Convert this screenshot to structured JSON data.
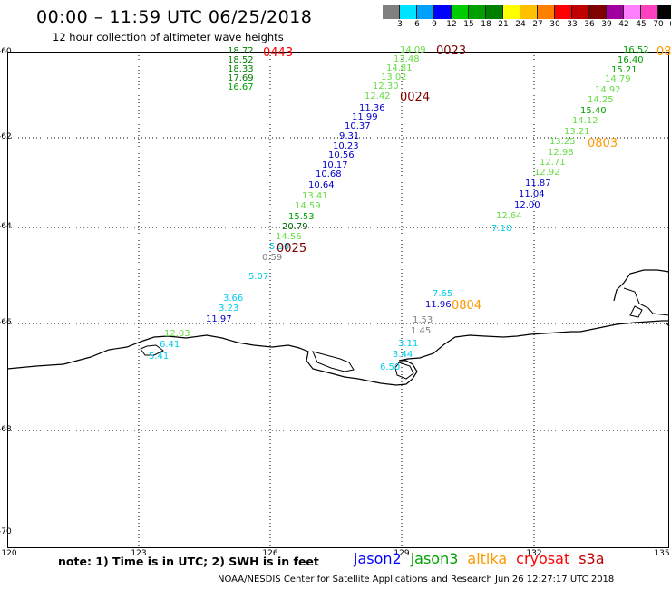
{
  "header": {
    "title": "00:00 – 11:59 UTC 06/25/2018",
    "subtitle": "12 hour collection of altimeter wave heights"
  },
  "scale": {
    "colors": [
      "#808080",
      "#00e5ff",
      "#00a0ff",
      "#0000ff",
      "#00cc00",
      "#00a000",
      "#008000",
      "#ffff00",
      "#ffc000",
      "#ff8000",
      "#ff0000",
      "#c00000",
      "#800000",
      "#a000a0",
      "#ff80ff",
      "#ff40c0",
      "#000000"
    ],
    "labels": [
      "3",
      "6",
      "9",
      "12",
      "15",
      "18",
      "21",
      "24",
      "27",
      "30",
      "33",
      "36",
      "39",
      "42",
      "45",
      "70",
      "(ft)"
    ]
  },
  "axes": {
    "lat_labels": [
      "-60",
      "-62",
      "-64",
      "-66",
      "-68",
      "-70"
    ],
    "lon_labels": [
      "120",
      "123",
      "126",
      "129",
      "132",
      "135"
    ]
  },
  "tracks": {
    "t0443": {
      "time": "0443",
      "time_color": "#ff0000",
      "values": [
        {
          "v": "18.72",
          "c": "#008000"
        },
        {
          "v": "18.52",
          "c": "#008000"
        },
        {
          "v": "18.33",
          "c": "#008000"
        },
        {
          "v": "17.69",
          "c": "#008000"
        },
        {
          "v": "16.67",
          "c": "#00a000"
        }
      ]
    },
    "t0023": {
      "time": "0023",
      "time_color": "#800000",
      "values": [
        {
          "v": "14.09",
          "c": "#66dd44"
        },
        {
          "v": "13.48",
          "c": "#66dd44"
        },
        {
          "v": "14.81",
          "c": "#66dd44"
        },
        {
          "v": "13.02",
          "c": "#66dd44"
        },
        {
          "v": "12.30",
          "c": "#66dd44"
        },
        {
          "v": "12.42",
          "c": "#66dd44"
        }
      ]
    },
    "t0024": {
      "time": "0024",
      "time_color": "#800000",
      "values": [
        {
          "v": "11.36",
          "c": "#0000cc"
        },
        {
          "v": "11.99",
          "c": "#0000cc"
        },
        {
          "v": "10.37",
          "c": "#0000cc"
        },
        {
          "v": "9.31",
          "c": "#0000cc"
        },
        {
          "v": "10.23",
          "c": "#0000cc"
        },
        {
          "v": "10.56",
          "c": "#0000cc"
        },
        {
          "v": "10.17",
          "c": "#0000cc"
        },
        {
          "v": "10.68",
          "c": "#0000cc"
        },
        {
          "v": "10.64",
          "c": "#0000cc"
        },
        {
          "v": "13.41",
          "c": "#66dd44"
        },
        {
          "v": "14.59",
          "c": "#66dd44"
        },
        {
          "v": "15.53",
          "c": "#00a000"
        },
        {
          "v": "20.79",
          "c": "#006000"
        },
        {
          "v": "14.56",
          "c": "#66dd44"
        },
        {
          "v": "5.90",
          "c": "#00ccee"
        }
      ]
    },
    "t0025": {
      "time": "0025",
      "time_color": "#800000",
      "values": [
        {
          "v": "0.59",
          "c": "#808080"
        },
        {
          "v": "5.07",
          "c": "#00ccee"
        },
        {
          "v": "3.66",
          "c": "#00ccee"
        },
        {
          "v": "3.23",
          "c": "#00ccee"
        },
        {
          "v": "11.97",
          "c": "#0000cc"
        },
        {
          "v": "12.03",
          "c": "#66dd44"
        },
        {
          "v": "6.41",
          "c": "#00ccee"
        },
        {
          "v": "5.41",
          "c": "#00ccee"
        }
      ]
    },
    "t0803": {
      "time": "0803",
      "time_color": "#ff9900",
      "values": [
        {
          "v": "16.52",
          "c": "#00a000"
        },
        {
          "v": "16.40",
          "c": "#00a000"
        },
        {
          "v": "15.21",
          "c": "#00a000"
        },
        {
          "v": "14.79",
          "c": "#66dd44"
        },
        {
          "v": "14.92",
          "c": "#66dd44"
        },
        {
          "v": "14.25",
          "c": "#66dd44"
        },
        {
          "v": "15.40",
          "c": "#00a000"
        },
        {
          "v": "14.12",
          "c": "#66dd44"
        },
        {
          "v": "13.21",
          "c": "#66dd44"
        },
        {
          "v": "13.25",
          "c": "#66dd44"
        },
        {
          "v": "12.98",
          "c": "#66dd44"
        },
        {
          "v": "12.71",
          "c": "#66dd44"
        },
        {
          "v": "12.92",
          "c": "#66dd44"
        },
        {
          "v": "11.87",
          "c": "#0000cc"
        },
        {
          "v": "11.04",
          "c": "#0000cc"
        },
        {
          "v": "12.00",
          "c": "#0000cc"
        },
        {
          "v": "12.64",
          "c": "#66dd44"
        },
        {
          "v": "7.10",
          "c": "#00ccee"
        }
      ]
    },
    "t0804": {
      "time": "0804",
      "time_color": "#ff9900",
      "values": [
        {
          "v": "7.65",
          "c": "#00ccee"
        },
        {
          "v": "11.96",
          "c": "#0000cc"
        },
        {
          "v": "1.53",
          "c": "#808080"
        },
        {
          "v": "1.45",
          "c": "#808080"
        },
        {
          "v": "3.11",
          "c": "#00ccee"
        },
        {
          "v": "3.44",
          "c": "#00ccee"
        },
        {
          "v": "6.50",
          "c": "#00ccee"
        }
      ]
    },
    "edge_time": {
      "time": "08",
      "time_color": "#ff9900"
    }
  },
  "footer": {
    "note": "note: 1) Time is in UTC; 2) SWH is in feet",
    "satellites": [
      {
        "name": "jason2",
        "color": "#0000ff"
      },
      {
        "name": "jason3",
        "color": "#00a000"
      },
      {
        "name": "altika",
        "color": "#ff9900"
      },
      {
        "name": "cryosat",
        "color": "#ff0000"
      },
      {
        "name": "s3a",
        "color": "#c00000"
      }
    ],
    "credit": "NOAA/NESDIS Center for Satellite Applications and Research     Jun 26 12:27:17 UTC 2018"
  }
}
